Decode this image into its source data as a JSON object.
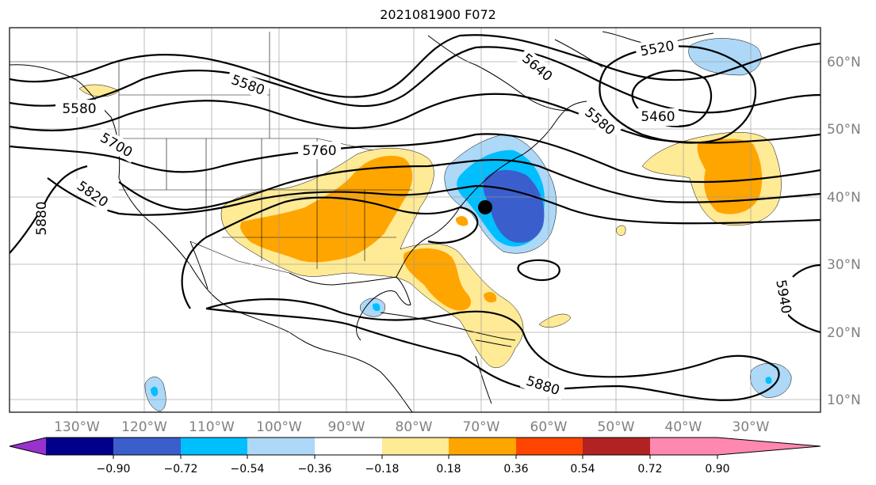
{
  "title": "2021081900 F072",
  "lon_labels": [
    "130°W",
    "120°W",
    "110°W",
    "100°W",
    "90°W",
    "80°W",
    "70°W",
    "60°W",
    "50°W",
    "40°W",
    "30°W"
  ],
  "lat_labels": [
    "60°N",
    "50°N",
    "40°N",
    "30°N",
    "20°N",
    "10°N"
  ],
  "contour_labels": [
    "5580",
    "5580",
    "5640",
    "5520",
    "5580",
    "5460",
    "5760",
    "5700",
    "5820",
    "5880",
    "5940",
    "5880"
  ],
  "colorbar": {
    "ticks": [
      "−0.90",
      "−0.72",
      "−0.54",
      "−0.36",
      "−0.18",
      "0.18",
      "0.36",
      "0.54",
      "0.72",
      "0.90"
    ],
    "colors": [
      "#9932cc",
      "#00008b",
      "#3a5fcd",
      "#00bfff",
      "#add8f7",
      "#ffffff",
      "#ffea96",
      "#ffa500",
      "#ff4500",
      "#b22222",
      "#ff88b0"
    ]
  },
  "marker": "storm-center-dot"
}
